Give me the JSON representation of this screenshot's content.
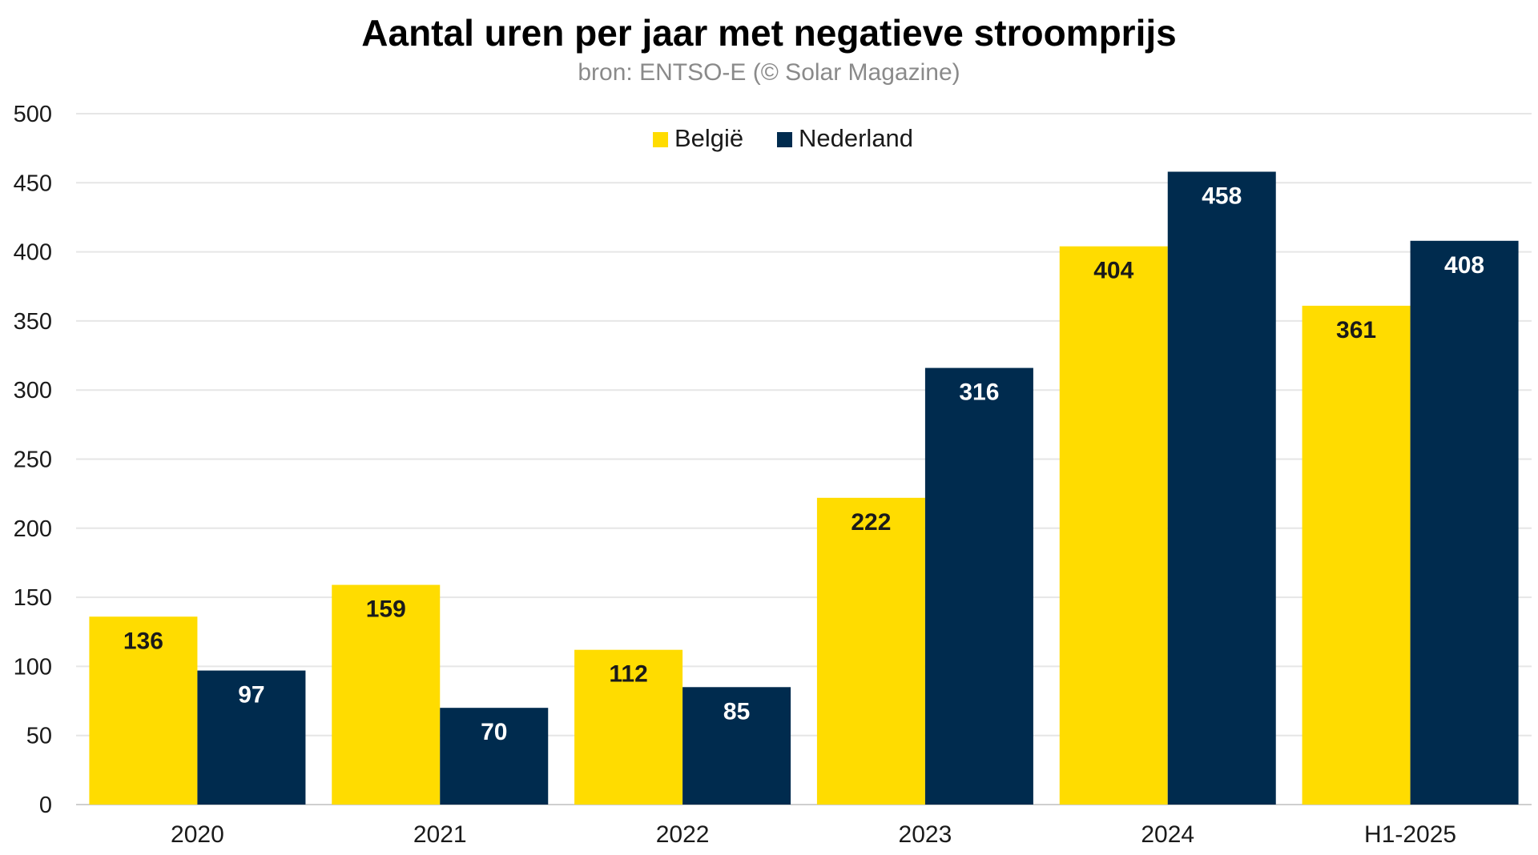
{
  "chart_data": {
    "type": "bar",
    "title": "Aantal uren per jaar met negatieve stroomprijs",
    "subtitle": "bron: ENTSO-E (© Solar Magazine)",
    "categories": [
      "2020",
      "2021",
      "2022",
      "2023",
      "2024",
      "H1-2025"
    ],
    "series": [
      {
        "name": "België",
        "color": "#FFDC00",
        "label_color": "#1a1a1a",
        "values": [
          136,
          159,
          112,
          222,
          404,
          361
        ]
      },
      {
        "name": "Nederland",
        "color": "#002B4E",
        "label_color": "#ffffff",
        "values": [
          97,
          70,
          85,
          316,
          458,
          408
        ]
      }
    ],
    "ylim": [
      0,
      500
    ],
    "yticks": [
      0,
      50,
      100,
      150,
      200,
      250,
      300,
      350,
      400,
      450,
      500
    ],
    "grid": true,
    "legend_position": "top-center",
    "xlabel": "",
    "ylabel": ""
  }
}
